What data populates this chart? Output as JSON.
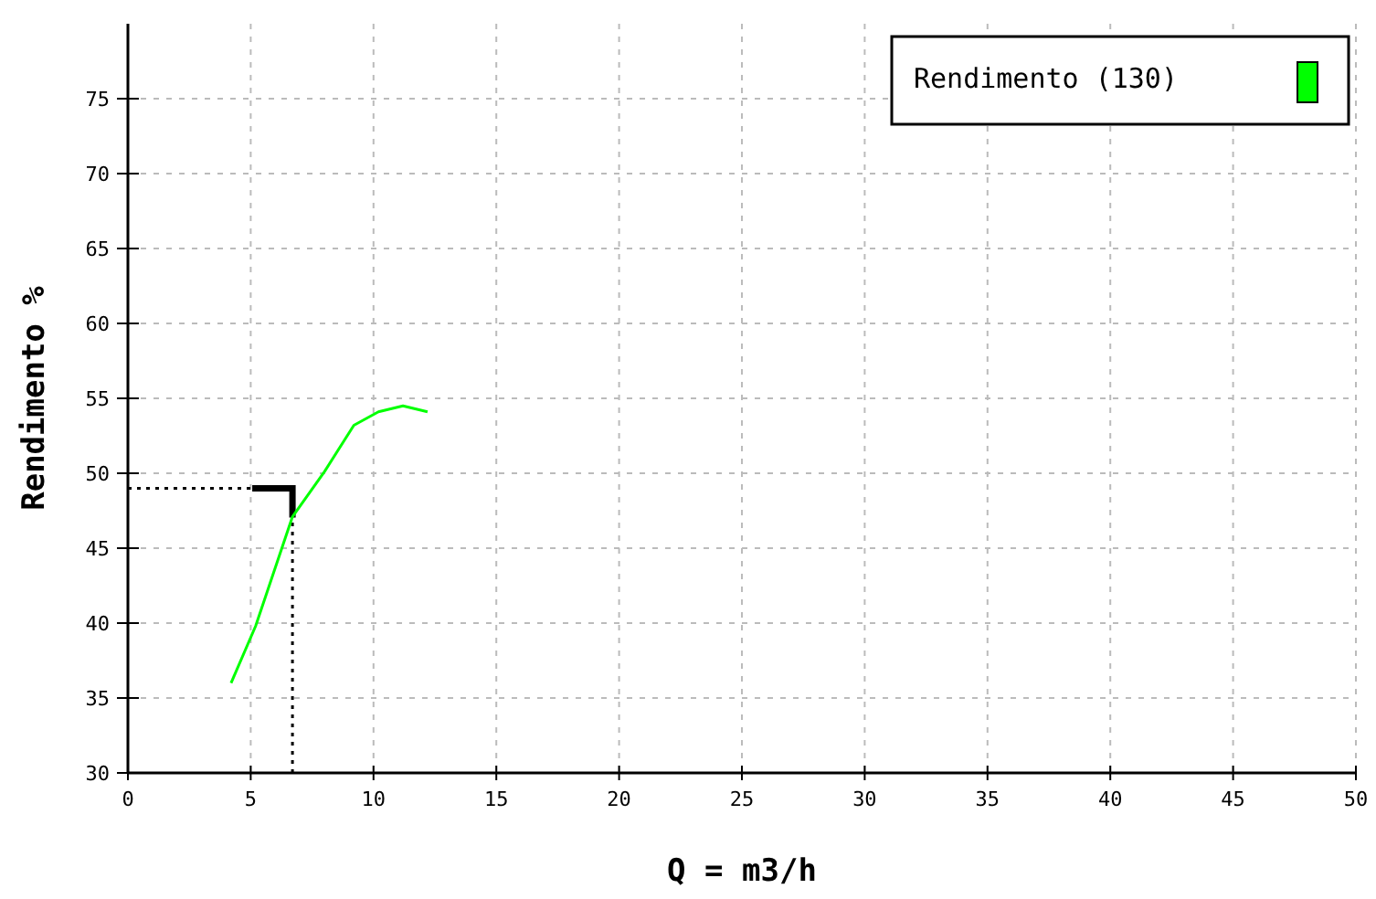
{
  "chart_data": {
    "type": "line",
    "xlabel": "Q = m3/h",
    "ylabel": "Rendimento %",
    "series": [
      {
        "name": "Rendimento (130)",
        "color": "#00ff00",
        "x": [
          4.2,
          5.2,
          6.7,
          8.0,
          9.2,
          10.2,
          11.2,
          12.2
        ],
        "values": [
          36.0,
          39.8,
          47.1,
          50.1,
          53.2,
          54.1,
          54.5,
          54.1
        ]
      }
    ],
    "xlim": [
      0,
      50
    ],
    "xticks": [
      0,
      5,
      10,
      15,
      20,
      25,
      30,
      35,
      40,
      45,
      50
    ],
    "ylim": [
      30,
      80
    ],
    "yticks": [
      30,
      35,
      40,
      45,
      50,
      55,
      60,
      65,
      70,
      75
    ],
    "ref_lines": [
      {
        "axis": "x",
        "value": 6.7,
        "line_style": "dotted",
        "color": "#000000"
      },
      {
        "axis": "y",
        "value": 49,
        "line_style": "dotted",
        "color": "#000000"
      }
    ],
    "grid": true,
    "legend": "top right",
    "marker": "none",
    "line_style": "solid"
  }
}
